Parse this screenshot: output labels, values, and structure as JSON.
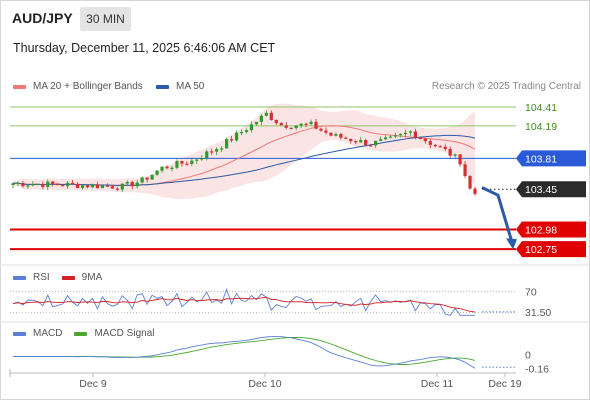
{
  "header": {
    "symbol": "AUD/JPY",
    "interval": "30 MIN",
    "timestamp": "Thursday, December 11, 2025 6:46:06 AM CET"
  },
  "legend": {
    "items": [
      {
        "label": "MA 20 + Bollinger Bands",
        "color": "#f07878"
      },
      {
        "label": "MA 50",
        "color": "#2a5aa8"
      }
    ],
    "credit": "Research © 2025 Trading Central"
  },
  "chart_data": [
    {
      "type": "candlestick",
      "title": "AUD/JPY",
      "ylim": [
        102.6,
        104.55
      ],
      "levels": [
        {
          "label": "104.41",
          "value": 104.41,
          "color": "#8dc66a",
          "style": "thin"
        },
        {
          "label": "104.19",
          "value": 104.19,
          "color": "#8dc66a",
          "style": "thin"
        },
        {
          "label": "103.81",
          "value": 103.81,
          "color": "#2a5ad8",
          "style": "thin"
        },
        {
          "label": "103.45",
          "value": 103.45,
          "color": "#222222",
          "style": "dotted"
        },
        {
          "label": "102.98",
          "value": 102.98,
          "color": "#e00000",
          "style": "thick"
        },
        {
          "label": "102.75",
          "value": 102.75,
          "color": "#e00000",
          "style": "thick"
        }
      ],
      "last_price": 103.45,
      "forecast_arrow": {
        "from": 103.47,
        "via": 103.38,
        "to": 102.76
      },
      "x_labels": [
        "Dec 9",
        "Dec 10",
        "Dec 11",
        "Dec 19"
      ],
      "ma20_color": "#f07878",
      "ma50_color": "#2a5aa8",
      "band_fill": "#fbe1e1",
      "up_color": "#2e9a2e",
      "down_color": "#d23030"
    },
    {
      "type": "line",
      "title": "RSI",
      "series": [
        {
          "name": "RSI",
          "color": "#5b7fd6"
        },
        {
          "name": "9MA",
          "color": "#d42020"
        }
      ],
      "levels": [
        70,
        30
      ],
      "current_value": "31.50"
    },
    {
      "type": "line",
      "title": "MACD",
      "series": [
        {
          "name": "MACD",
          "color": "#5b7fd6"
        },
        {
          "name": "MACD Signal",
          "color": "#4aa830"
        }
      ],
      "zero_label": "0",
      "current_value": "-0.16"
    }
  ]
}
